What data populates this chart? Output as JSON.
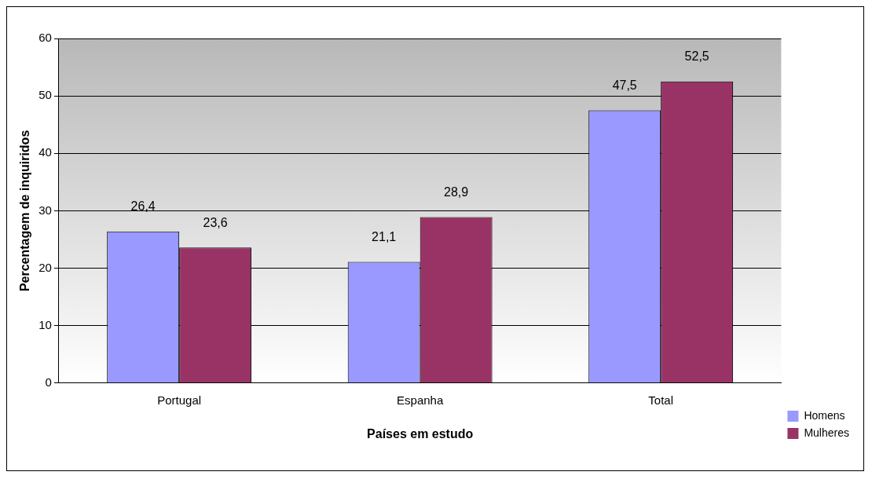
{
  "chart_data": {
    "type": "bar",
    "xlabel": "Países em estudo",
    "ylabel": "Percentagem de inquiridos",
    "categories": [
      "Portugal",
      "Espanha",
      "Total"
    ],
    "series": [
      {
        "name": "Homens",
        "color": "#9999ff",
        "values": [
          26.4,
          21.1,
          47.5
        ],
        "value_labels": [
          "26,4",
          "21,1",
          "47,5"
        ]
      },
      {
        "name": "Mulheres",
        "color": "#993366",
        "values": [
          23.6,
          28.9,
          52.5
        ],
        "value_labels": [
          "23,6",
          "28,9",
          "52,5"
        ]
      }
    ],
    "ylim": [
      0,
      60
    ],
    "yticks": [
      0,
      10,
      20,
      30,
      40,
      50,
      60
    ],
    "grid": "y",
    "legend": "bottom right"
  }
}
